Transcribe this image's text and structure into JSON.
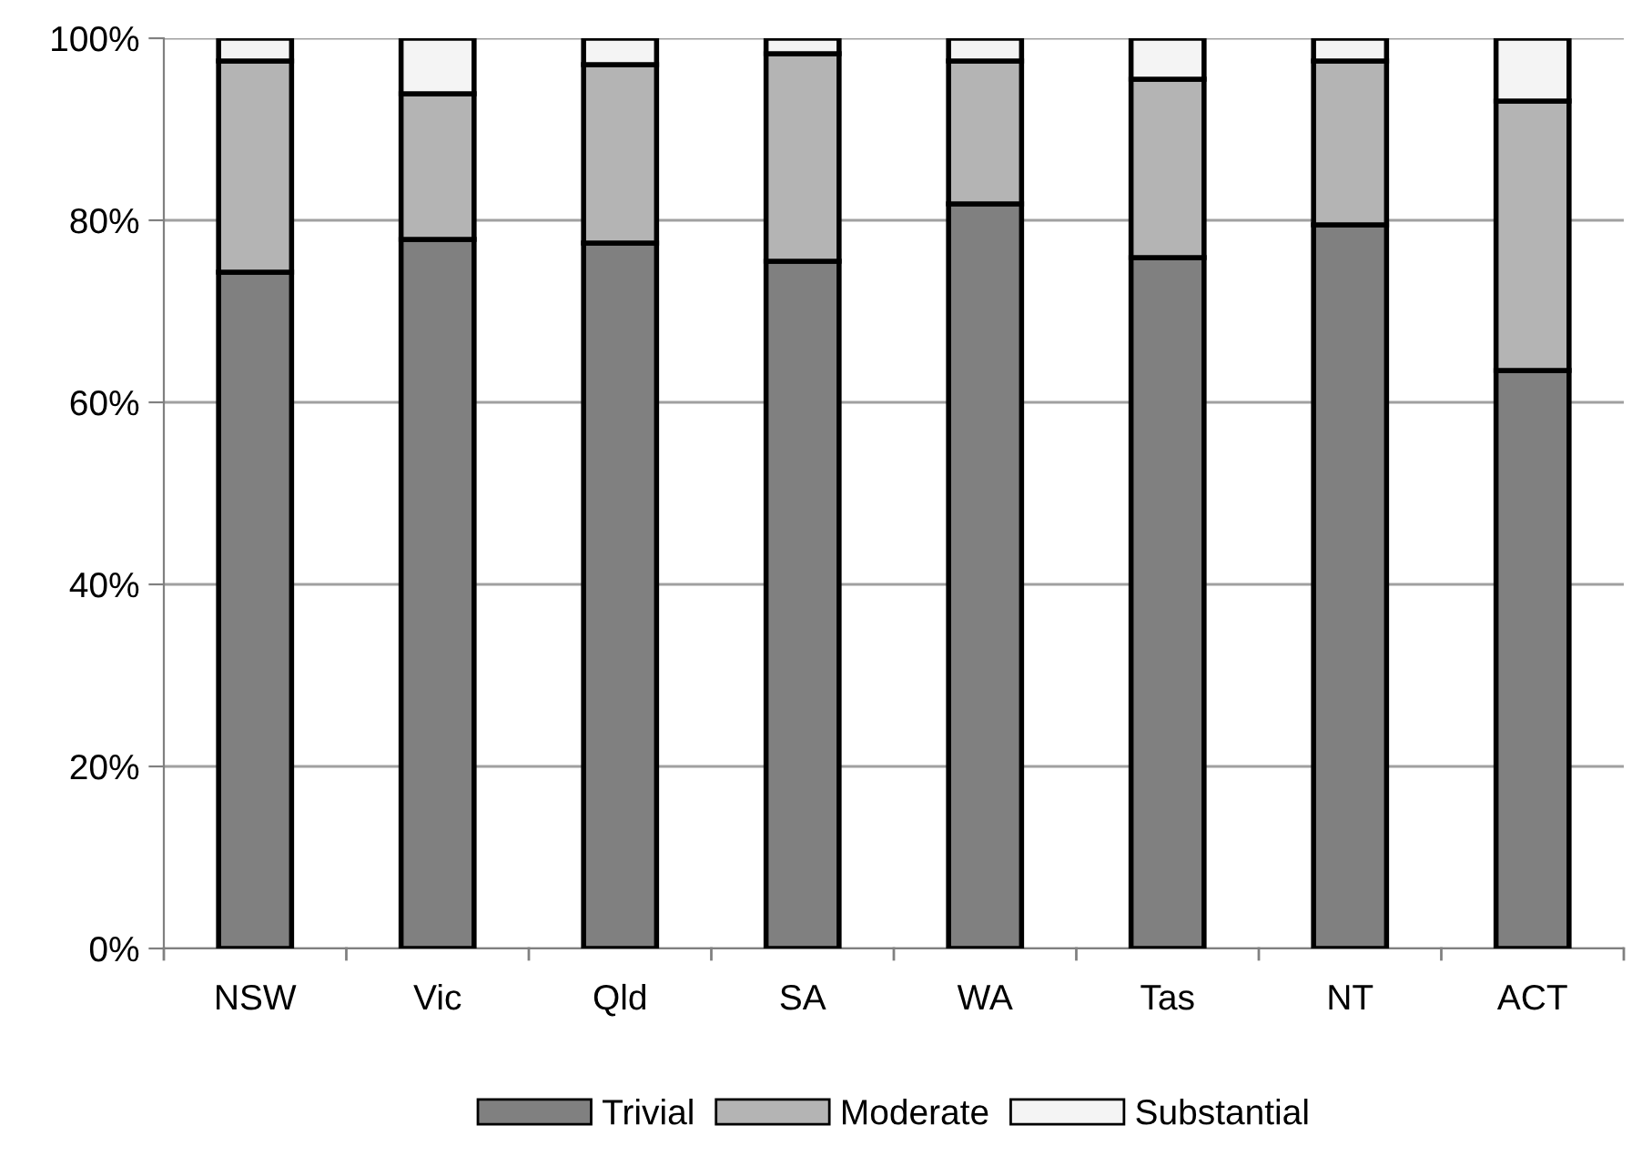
{
  "chart_data": {
    "type": "bar",
    "stacked": true,
    "categories": [
      "NSW",
      "Vic",
      "Qld",
      "SA",
      "WA",
      "Tas",
      "NT",
      "ACT"
    ],
    "series": [
      {
        "name": "Trivial",
        "color": "#808080",
        "values": [
          74.3,
          77.9,
          77.5,
          75.5,
          81.8,
          75.9,
          79.5,
          63.5
        ]
      },
      {
        "name": "Moderate",
        "color": "#b4b4b4",
        "values": [
          23.2,
          16.0,
          19.6,
          22.8,
          15.7,
          19.6,
          18.0,
          29.6
        ]
      },
      {
        "name": "Substantial",
        "color": "#f4f4f4",
        "values": [
          2.5,
          6.1,
          2.9,
          1.7,
          2.5,
          4.5,
          2.5,
          6.9
        ]
      }
    ],
    "ylim": [
      0,
      100
    ],
    "yticks": [
      {
        "value": 0,
        "label": "0%"
      },
      {
        "value": 20,
        "label": "20%"
      },
      {
        "value": 40,
        "label": "40%"
      },
      {
        "value": 60,
        "label": "60%"
      },
      {
        "value": 80,
        "label": "80%"
      },
      {
        "value": 100,
        "label": "100%"
      }
    ],
    "grid": "y",
    "legend": "bottom"
  }
}
